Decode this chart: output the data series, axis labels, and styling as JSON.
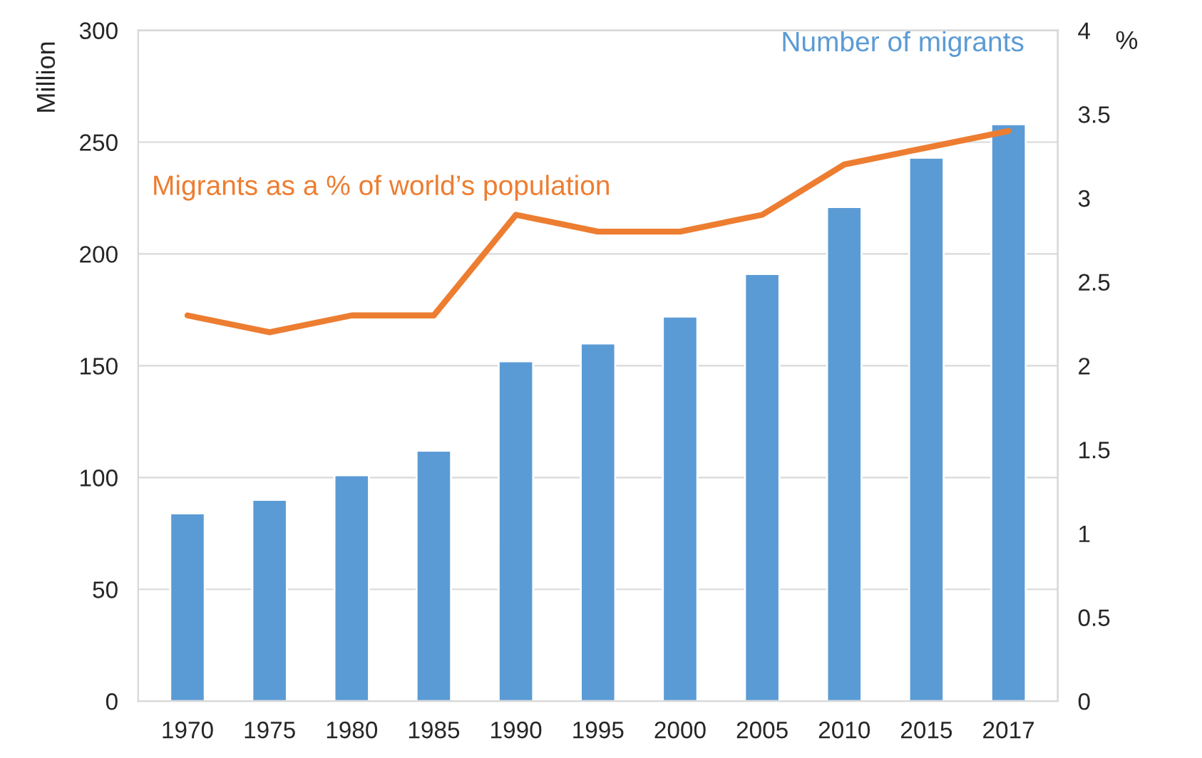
{
  "chart_data": {
    "type": "bar",
    "ylabel": "Million",
    "y2label": "%",
    "categories": [
      "1970",
      "1975",
      "1980",
      "1985",
      "1990",
      "1995",
      "2000",
      "2005",
      "2010",
      "2015",
      "2017"
    ],
    "series": [
      {
        "name": "Number of migrants",
        "color": "#5b9bd5",
        "values": [
          84,
          90,
          101,
          112,
          152,
          160,
          172,
          191,
          221,
          243,
          258
        ]
      },
      {
        "name": "Migrants as a % of world’s population",
        "type": "line",
        "axis": "y2",
        "color": "#ed7d31",
        "values": [
          2.3,
          2.2,
          2.3,
          2.3,
          2.9,
          2.8,
          2.8,
          2.9,
          3.2,
          3.3,
          3.4
        ]
      }
    ],
    "ylim": [
      0,
      300
    ],
    "yticks": [
      0,
      50,
      100,
      150,
      200,
      250,
      300
    ],
    "y2lim": [
      0,
      4
    ],
    "y2ticks": [
      0,
      0.5,
      1,
      1.5,
      2,
      2.5,
      3,
      3.5,
      4
    ],
    "grid": "y",
    "legend": false,
    "marker": "none",
    "line_style": "solid"
  }
}
